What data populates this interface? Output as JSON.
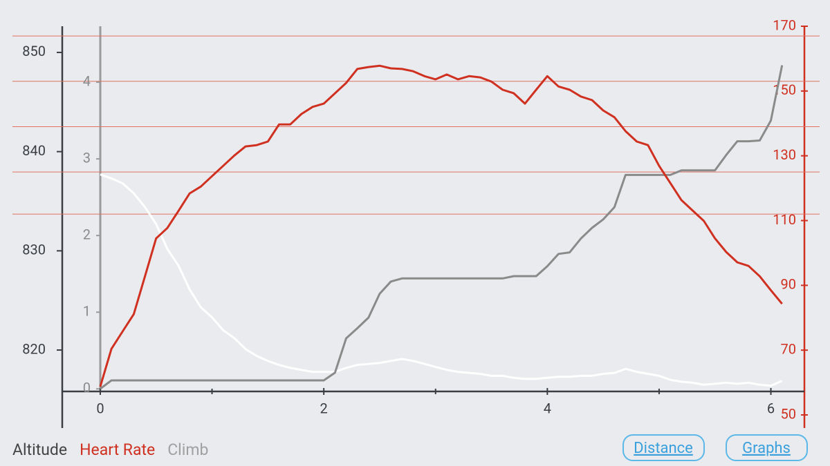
{
  "chart_data": {
    "type": "line",
    "x": [
      0,
      0.1,
      0.2,
      0.3,
      0.4,
      0.5,
      0.6,
      0.7,
      0.8,
      0.9,
      1.0,
      1.1,
      1.2,
      1.3,
      1.4,
      1.5,
      1.6,
      1.7,
      1.8,
      1.9,
      2.0,
      2.1,
      2.2,
      2.3,
      2.4,
      2.5,
      2.6,
      2.7,
      2.8,
      2.9,
      3.0,
      3.1,
      3.2,
      3.3,
      3.4,
      3.5,
      3.6,
      3.7,
      3.8,
      3.9,
      4.0,
      4.1,
      4.2,
      4.3,
      4.4,
      4.5,
      4.6,
      4.7,
      4.8,
      4.9,
      5.0,
      5.1,
      5.2,
      5.3,
      5.4,
      5.5,
      5.6,
      5.7,
      5.8,
      5.9,
      6.0,
      6.1
    ],
    "series": [
      {
        "name": "Altitude",
        "color": "#ffffff",
        "label_color": "#444444",
        "axis": "y",
        "values": [
          837.7,
          837.3,
          836.8,
          835.8,
          834.4,
          832.7,
          830.2,
          828.5,
          826.1,
          824.3,
          823.3,
          822,
          821.2,
          820.1,
          819.4,
          818.9,
          818.5,
          818.2,
          818,
          817.8,
          817.8,
          817.8,
          818.2,
          818.5,
          818.6,
          818.7,
          818.9,
          819.1,
          818.9,
          818.6,
          818.3,
          818,
          817.8,
          817.7,
          817.6,
          817.4,
          817.4,
          817.2,
          817.1,
          817.1,
          817.2,
          817.3,
          817.3,
          817.4,
          817.4,
          817.6,
          817.7,
          818.1,
          817.8,
          817.6,
          817.4,
          817,
          816.8,
          816.7,
          816.5,
          816.6,
          816.7,
          816.6,
          816.7,
          816.5,
          816.4,
          816.9
        ]
      },
      {
        "name": "Heart Rate",
        "color": "#d03020",
        "label_color": "#d03020",
        "axis": "y2",
        "values": [
          58.7,
          70.4,
          75.8,
          81.1,
          92.8,
          104.5,
          107.7,
          113,
          118.4,
          120.5,
          123.7,
          126.9,
          130.1,
          132.9,
          133.3,
          134.4,
          139.7,
          139.7,
          142.9,
          145.1,
          146.1,
          149.3,
          152.5,
          156.8,
          157.4,
          157.8,
          157,
          156.8,
          156.1,
          154.6,
          153.6,
          155.1,
          153.6,
          154.6,
          154.2,
          152.9,
          150.4,
          149.3,
          146.1,
          150.4,
          154.6,
          151.4,
          150.4,
          148.3,
          147.2,
          144,
          141.9,
          137.6,
          134.4,
          133.3,
          126.9,
          121.6,
          116.3,
          113.1,
          109.9,
          104.5,
          100.3,
          97.1,
          96,
          92.8,
          88.5,
          84.3
        ]
      },
      {
        "name": "Climb",
        "color": "#8a8a8a",
        "label_color": "#a0a0a0",
        "axis": "y3",
        "values": [
          0,
          0.11,
          0.11,
          0.11,
          0.11,
          0.11,
          0.11,
          0.11,
          0.11,
          0.11,
          0.11,
          0.11,
          0.11,
          0.11,
          0.11,
          0.11,
          0.11,
          0.11,
          0.11,
          0.11,
          0.11,
          0.21,
          0.66,
          0.79,
          0.93,
          1.24,
          1.4,
          1.44,
          1.44,
          1.44,
          1.44,
          1.44,
          1.44,
          1.44,
          1.44,
          1.44,
          1.44,
          1.47,
          1.47,
          1.47,
          1.6,
          1.76,
          1.78,
          1.96,
          2.1,
          2.21,
          2.37,
          2.79,
          2.79,
          2.79,
          2.79,
          2.79,
          2.85,
          2.85,
          2.85,
          2.85,
          3.05,
          3.23,
          3.23,
          3.24,
          3.5,
          4.22
        ]
      }
    ],
    "xlim": [
      -0.34,
      6.3
    ],
    "xticks": [
      0,
      2,
      4,
      6
    ],
    "xminor": [
      1,
      3,
      5
    ],
    "ylim": [
      813.46,
      852.64
    ],
    "yticks": [
      820,
      830,
      840,
      850
    ],
    "y2lim": [
      50,
      170
    ],
    "y2ticks": [
      50,
      70,
      90,
      110,
      130,
      150,
      170
    ],
    "y3lim": [
      -0.34,
      4.73
    ],
    "y3ticks": [
      0,
      1,
      2,
      3,
      4
    ],
    "hr_zones": [
      167,
      153,
      139,
      125,
      112
    ],
    "hr_zone_color": "#e07060"
  },
  "buttons": [
    "Distance",
    "Graphs"
  ]
}
